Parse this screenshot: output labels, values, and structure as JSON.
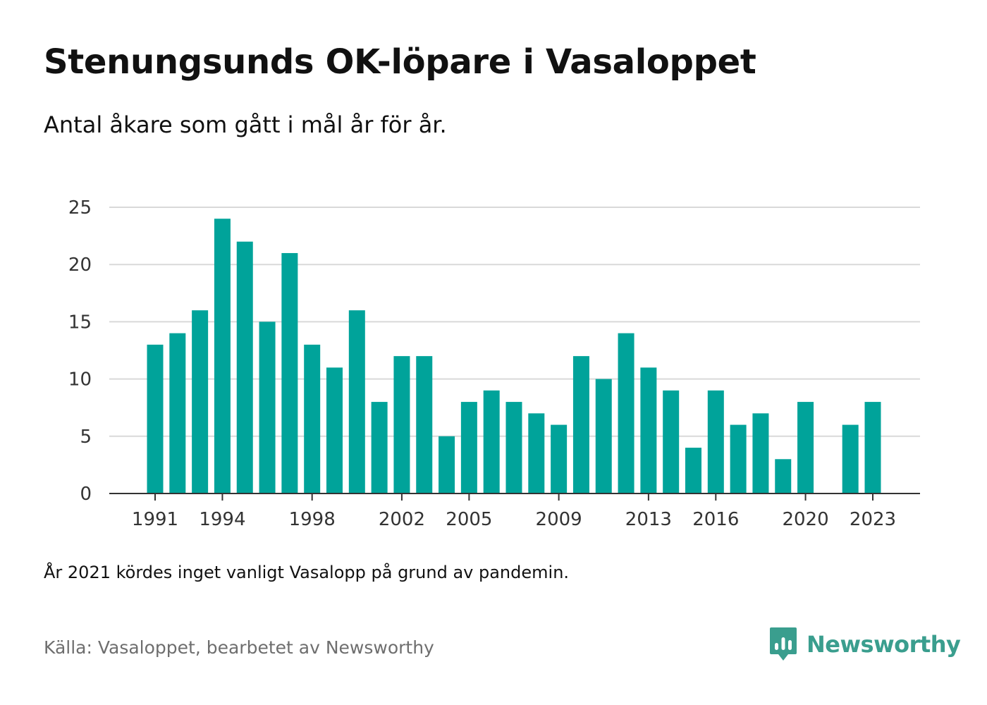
{
  "title": "Stenungsunds OK-löpare i Vasaloppet",
  "subtitle": "Antal åkare som gått i mål år för år.",
  "note": "År 2021 kördes inget vanligt Vasalopp på grund av pandemin.",
  "source": "Källa: Vasaloppet, bearbetet av Newsworthy",
  "brand": {
    "name": "Newsworthy",
    "icon": "newsworthy-bar-chart-bubble-icon",
    "color": "#3a9e8e"
  },
  "colors": {
    "bar": "#00a39a",
    "grid": "#d9d9d9",
    "axis": "#333333",
    "tick_text": "#333333"
  },
  "chart_data": {
    "type": "bar",
    "categories": [
      "1991",
      "1992",
      "1993",
      "1994",
      "1995",
      "1996",
      "1997",
      "1998",
      "1999",
      "2000",
      "2001",
      "2002",
      "2003",
      "2004",
      "2005",
      "2006",
      "2007",
      "2008",
      "2009",
      "2010",
      "2011",
      "2012",
      "2013",
      "2014",
      "2015",
      "2016",
      "2017",
      "2018",
      "2019",
      "2020",
      "2021",
      "2022",
      "2023"
    ],
    "values": [
      13,
      14,
      16,
      24,
      22,
      15,
      21,
      13,
      11,
      16,
      8,
      12,
      12,
      5,
      8,
      9,
      8,
      7,
      6,
      12,
      10,
      14,
      11,
      9,
      4,
      9,
      6,
      7,
      3,
      8,
      null,
      6,
      8
    ],
    "x_tick_labels": [
      "1991",
      "1994",
      "1998",
      "2002",
      "2005",
      "2009",
      "2013",
      "2016",
      "2020",
      "2023"
    ],
    "y_ticks": [
      0,
      5,
      10,
      15,
      20,
      25
    ],
    "ylim": [
      0,
      25
    ],
    "grid": true,
    "legend": "none",
    "title": "Stenungsunds OK-löpare i Vasaloppet",
    "xlabel": "",
    "ylabel": ""
  }
}
